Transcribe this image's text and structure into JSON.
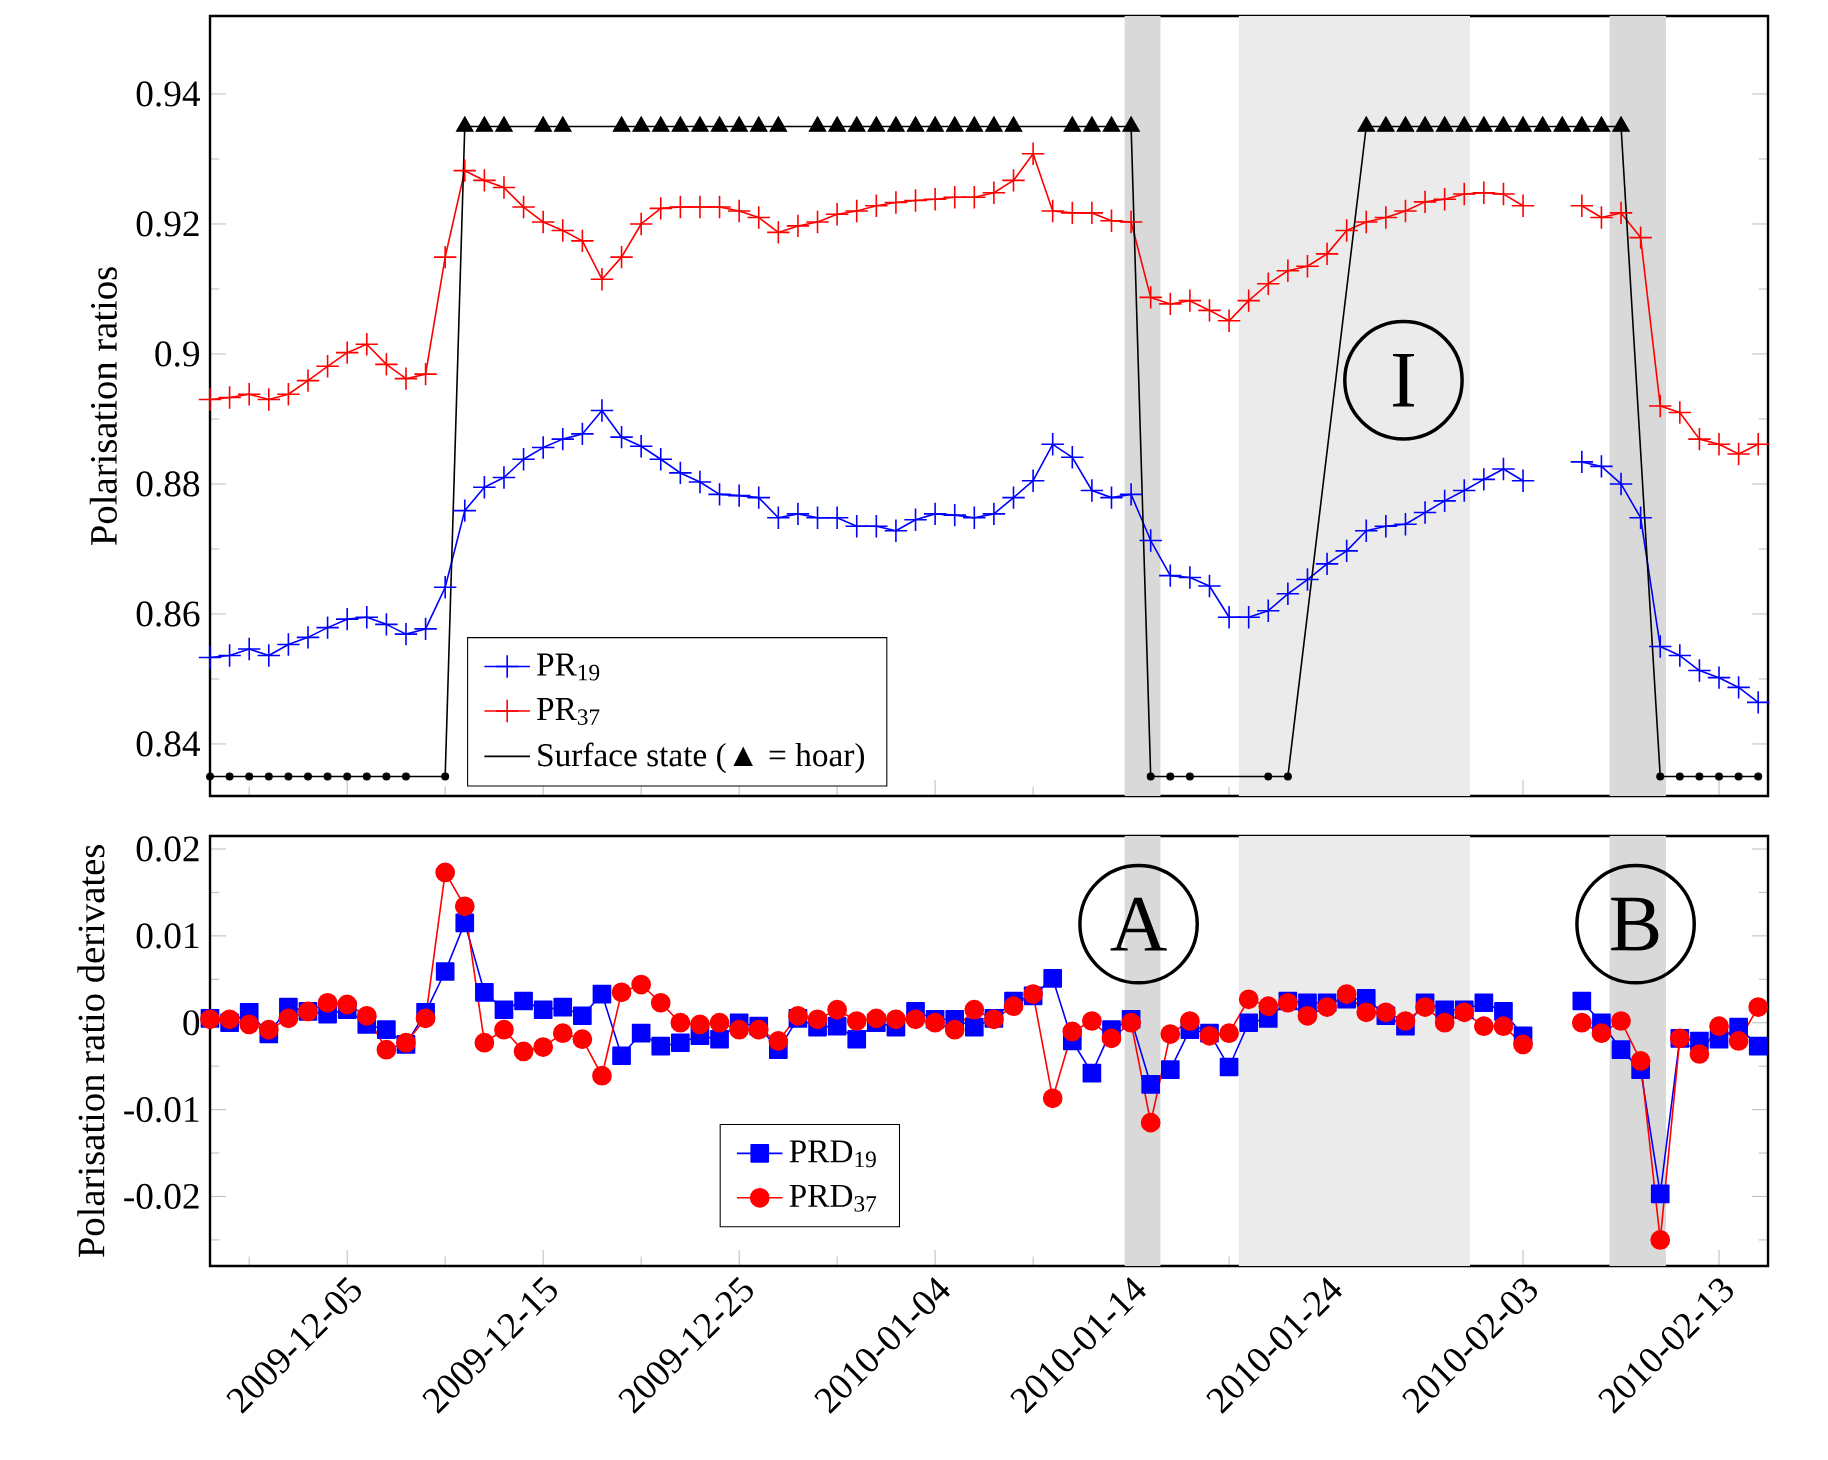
{
  "chart_data": [
    {
      "type": "line",
      "ylabel": "Polarisation ratios",
      "x": [
        "2009-11-28",
        "2009-11-29",
        "2009-11-30",
        "2009-12-01",
        "2009-12-02",
        "2009-12-03",
        "2009-12-04",
        "2009-12-05",
        "2009-12-06",
        "2009-12-07",
        "2009-12-08",
        "2009-12-09",
        "2009-12-10",
        "2009-12-11",
        "2009-12-12",
        "2009-12-13",
        "2009-12-14",
        "2009-12-15",
        "2009-12-16",
        "2009-12-17",
        "2009-12-18",
        "2009-12-19",
        "2009-12-20",
        "2009-12-21",
        "2009-12-22",
        "2009-12-23",
        "2009-12-24",
        "2009-12-25",
        "2009-12-26",
        "2009-12-27",
        "2009-12-28",
        "2009-12-29",
        "2009-12-30",
        "2009-12-31",
        "2010-01-01",
        "2010-01-02",
        "2010-01-03",
        "2010-01-04",
        "2010-01-05",
        "2010-01-06",
        "2010-01-07",
        "2010-01-08",
        "2010-01-09",
        "2010-01-10",
        "2010-01-11",
        "2010-01-12",
        "2010-01-13",
        "2010-01-14",
        "2010-01-15",
        "2010-01-16",
        "2010-01-17",
        "2010-01-18",
        "2010-01-19",
        "2010-01-20",
        "2010-01-21",
        "2010-01-22",
        "2010-01-23",
        "2010-01-24",
        "2010-01-25",
        "2010-01-26",
        "2010-01-27",
        "2010-01-28",
        "2010-01-29",
        "2010-01-30",
        "2010-01-31",
        "2010-02-01",
        "2010-02-02",
        "2010-02-03",
        "2010-02-04",
        "2010-02-05",
        "2010-02-06",
        "2010-02-07",
        "2010-02-08",
        "2010-02-09",
        "2010-02-10",
        "2010-02-11",
        "2010-02-12",
        "2010-02-13",
        "2010-02-14",
        "2010-02-15"
      ],
      "series": [
        {
          "name": "PR$_{19}$",
          "color": "#0000ff",
          "marker": "cross",
          "values": [
            0.8533,
            0.8536,
            0.8546,
            0.8536,
            0.8553,
            0.8564,
            0.8579,
            0.8592,
            0.8595,
            0.8584,
            0.8569,
            0.8577,
            0.8641,
            0.8759,
            0.8795,
            0.881,
            0.8838,
            0.8856,
            0.8869,
            0.8877,
            0.8913,
            0.8872,
            0.8858,
            0.8838,
            0.8817,
            0.8803,
            0.8784,
            0.8782,
            0.8779,
            0.8748,
            0.8754,
            0.8748,
            0.8748,
            0.8735,
            0.8735,
            0.8728,
            0.8745,
            0.8754,
            0.8752,
            0.8748,
            0.8754,
            0.8779,
            0.8805,
            0.8861,
            0.8841,
            0.879,
            0.8779,
            0.8784,
            0.8713,
            0.8659,
            0.8656,
            0.8643,
            0.8595,
            0.8595,
            0.8605,
            0.8631,
            0.8653,
            0.8677,
            0.8697,
            0.8728,
            0.8735,
            0.8738,
            0.8756,
            0.8774,
            0.879,
            0.8807,
            0.8823,
            0.8805,
            null,
            null,
            0.8834,
            0.8827,
            0.88,
            0.8748,
            0.855,
            0.8536,
            0.8513,
            0.8502,
            0.8487,
            0.8464
          ]
        },
        {
          "name": "PR$_{37}$",
          "color": "#ff0000",
          "marker": "cross",
          "values": [
            0.893,
            0.8933,
            0.8938,
            0.893,
            0.8938,
            0.8959,
            0.8981,
            0.9002,
            0.9015,
            0.8984,
            0.8962,
            0.8969,
            0.9149,
            0.9282,
            0.9267,
            0.9256,
            0.9226,
            0.9203,
            0.919,
            0.9174,
            0.9115,
            0.9149,
            0.92,
            0.9224,
            0.9226,
            0.9226,
            0.9226,
            0.922,
            0.921,
            0.9187,
            0.9197,
            0.9203,
            0.9215,
            0.922,
            0.9228,
            0.9233,
            0.9236,
            0.9238,
            0.9241,
            0.9241,
            0.9248,
            0.9267,
            0.9308,
            0.922,
            0.9217,
            0.9217,
            0.9205,
            0.9203,
            0.9087,
            0.9077,
            0.9082,
            0.9067,
            0.9051,
            0.9082,
            0.9108,
            0.9128,
            0.9135,
            0.9154,
            0.919,
            0.9203,
            0.921,
            0.922,
            0.9234,
            0.9238,
            0.9246,
            0.9248,
            0.9246,
            0.9228,
            null,
            null,
            0.9228,
            0.921,
            0.9217,
            0.9179,
            0.892,
            0.891,
            0.8869,
            0.8861,
            0.8846,
            0.8861
          ]
        },
        {
          "name": "Surface state (▲ = hoar)",
          "color": "#000000",
          "marker": "none",
          "x": [
            "2009-11-28",
            "2009-11-29",
            "2009-11-30",
            "2009-12-01",
            "2009-12-02",
            "2009-12-03",
            "2009-12-04",
            "2009-12-05",
            "2009-12-06",
            "2009-12-07",
            "2009-12-08",
            "2009-12-10",
            "2009-12-11",
            "2009-12-12",
            "2009-12-13",
            "2009-12-15",
            "2009-12-16",
            "2009-12-19",
            "2009-12-20",
            "2009-12-21",
            "2009-12-22",
            "2009-12-23",
            "2009-12-24",
            "2009-12-25",
            "2009-12-26",
            "2009-12-27",
            "2009-12-29",
            "2009-12-30",
            "2009-12-31",
            "2010-01-01",
            "2010-01-02",
            "2010-01-03",
            "2010-01-04",
            "2010-01-05",
            "2010-01-06",
            "2010-01-07",
            "2010-01-08",
            "2010-01-11",
            "2010-01-12",
            "2010-01-13",
            "2010-01-14",
            "2010-01-15",
            "2010-01-16",
            "2010-01-17",
            "2010-01-21",
            "2010-01-22",
            "2010-01-26",
            "2010-01-27",
            "2010-01-28",
            "2010-01-29",
            "2010-01-30",
            "2010-01-31",
            "2010-02-01",
            "2010-02-02",
            "2010-02-03",
            "2010-02-04",
            "2010-02-05",
            "2010-02-06",
            "2010-02-07",
            "2010-02-08",
            "2010-02-10",
            "2010-02-11",
            "2010-02-12",
            "2010-02-13",
            "2010-02-14",
            "2010-02-15"
          ],
          "values": [
            0.835,
            0.835,
            0.835,
            0.835,
            0.835,
            0.835,
            0.835,
            0.835,
            0.835,
            0.835,
            0.835,
            0.835,
            0.935,
            0.935,
            0.935,
            0.935,
            0.935,
            0.935,
            0.935,
            0.935,
            0.935,
            0.935,
            0.935,
            0.935,
            0.935,
            0.935,
            0.935,
            0.935,
            0.935,
            0.935,
            0.935,
            0.935,
            0.935,
            0.935,
            0.935,
            0.935,
            0.935,
            0.935,
            0.935,
            0.935,
            0.935,
            0.835,
            0.835,
            0.835,
            0.835,
            0.835,
            0.935,
            0.935,
            0.935,
            0.935,
            0.935,
            0.935,
            0.935,
            0.935,
            0.935,
            0.935,
            0.935,
            0.935,
            0.935,
            0.935,
            0.835,
            0.835,
            0.835,
            0.835,
            0.835,
            0.835
          ]
        },
        {
          "type": "scatter",
          "color": "#000000",
          "marker": "triangle",
          "x": [
            "2009-12-11",
            "2009-12-12",
            "2009-12-13",
            "2009-12-15",
            "2009-12-16",
            "2009-12-19",
            "2009-12-20",
            "2009-12-21",
            "2009-12-22",
            "2009-12-23",
            "2009-12-24",
            "2009-12-25",
            "2009-12-26",
            "2009-12-27",
            "2009-12-29",
            "2009-12-30",
            "2009-12-31",
            "2010-01-01",
            "2010-01-02",
            "2010-01-03",
            "2010-01-04",
            "2010-01-05",
            "2010-01-06",
            "2010-01-07",
            "2010-01-08",
            "2010-01-11",
            "2010-01-12",
            "2010-01-13",
            "2010-01-14",
            "2010-01-26",
            "2010-01-27",
            "2010-01-28",
            "2010-01-29",
            "2010-01-30",
            "2010-01-31",
            "2010-02-01",
            "2010-02-02",
            "2010-02-03",
            "2010-02-04",
            "2010-02-05",
            "2010-02-06",
            "2010-02-07",
            "2010-02-08"
          ],
          "values": [
            0.935,
            0.935,
            0.935,
            0.935,
            0.935,
            0.935,
            0.935,
            0.935,
            0.935,
            0.935,
            0.935,
            0.935,
            0.935,
            0.935,
            0.935,
            0.935,
            0.935,
            0.935,
            0.935,
            0.935,
            0.935,
            0.935,
            0.935,
            0.935,
            0.935,
            0.935,
            0.935,
            0.935,
            0.935,
            0.935,
            0.935,
            0.935,
            0.935,
            0.935,
            0.935,
            0.935,
            0.935,
            0.935,
            0.935,
            0.935,
            0.935,
            0.935,
            0.935
          ]
        },
        {
          "type": "scatter",
          "color": "#000000",
          "marker": "circle",
          "x": [
            "2009-11-28",
            "2009-11-29",
            "2009-11-30",
            "2009-12-01",
            "2009-12-02",
            "2009-12-03",
            "2009-12-04",
            "2009-12-05",
            "2009-12-06",
            "2009-12-07",
            "2009-12-08",
            "2009-12-10",
            "2010-01-15",
            "2010-01-16",
            "2010-01-17",
            "2010-01-21",
            "2010-01-22",
            "2010-02-10",
            "2010-02-11",
            "2010-02-12",
            "2010-02-13",
            "2010-02-14",
            "2010-02-15"
          ],
          "values": [
            0.835,
            0.835,
            0.835,
            0.835,
            0.835,
            0.835,
            0.835,
            0.835,
            0.835,
            0.835,
            0.835,
            0.835,
            0.835,
            0.835,
            0.835,
            0.835,
            0.835,
            0.835,
            0.835,
            0.835,
            0.835,
            0.835,
            0.835
          ]
        }
      ],
      "xlim": [
        "2009-11-28",
        "2010-02-15T12:00"
      ],
      "xticks": [
        {
          "value": "2009-11-30",
          "label": null
        },
        "2009-12-05",
        {
          "value": "2009-12-10",
          "label": null
        },
        "2009-12-15",
        {
          "value": "2009-12-20",
          "label": null
        },
        "2009-12-25",
        {
          "value": "2009-12-30",
          "label": null
        },
        "2010-01-04",
        {
          "value": "2010-01-09",
          "label": null
        },
        "2010-01-14",
        {
          "value": "2010-01-19",
          "label": null
        },
        "2010-01-24",
        {
          "value": "2010-01-29",
          "label": null
        },
        "2010-02-03",
        {
          "value": "2010-02-08",
          "label": null
        },
        "2010-02-13"
      ],
      "ylim": [
        0.832,
        0.952
      ],
      "yticks": [
        0.84,
        {
          "value": 0.85,
          "label": null
        },
        0.86,
        {
          "value": 0.87,
          "label": null
        },
        0.88,
        {
          "value": 0.89,
          "label": null
        },
        0.9,
        {
          "value": 0.91,
          "label": null
        },
        0.92,
        {
          "value": 0.93,
          "label": null
        },
        0.94
      ],
      "tick_labels": "y",
      "legend": "bottom left",
      "bands": [
        {
          "axis": "x",
          "from": "2010-01-13T16:00",
          "to": "2010-01-15T12:00",
          "color": "#d9d9d9"
        },
        {
          "axis": "x",
          "from": "2010-01-19T12:00",
          "to": "2010-01-31T07:00",
          "color": "#ebebeb"
        },
        {
          "axis": "x",
          "from": "2010-02-07T10:00",
          "to": "2010-02-10T07:00",
          "color": "#d9d9d9"
        }
      ],
      "annotations": [
        "I"
      ]
    },
    {
      "type": "line",
      "ylabel": "Polarisation ratio derivates",
      "x": [
        "2009-11-28",
        "2009-11-29",
        "2009-11-30",
        "2009-12-01",
        "2009-12-02",
        "2009-12-03",
        "2009-12-04",
        "2009-12-05",
        "2009-12-06",
        "2009-12-07",
        "2009-12-08",
        "2009-12-09",
        "2009-12-10",
        "2009-12-11",
        "2009-12-12",
        "2009-12-13",
        "2009-12-14",
        "2009-12-15",
        "2009-12-16",
        "2009-12-17",
        "2009-12-18",
        "2009-12-19",
        "2009-12-20",
        "2009-12-21",
        "2009-12-22",
        "2009-12-23",
        "2009-12-24",
        "2009-12-25",
        "2009-12-26",
        "2009-12-27",
        "2009-12-28",
        "2009-12-29",
        "2009-12-30",
        "2009-12-31",
        "2010-01-01",
        "2010-01-02",
        "2010-01-03",
        "2010-01-04",
        "2010-01-05",
        "2010-01-06",
        "2010-01-07",
        "2010-01-08",
        "2010-01-09",
        "2010-01-10",
        "2010-01-11",
        "2010-01-12",
        "2010-01-13",
        "2010-01-14",
        "2010-01-15",
        "2010-01-16",
        "2010-01-17",
        "2010-01-18",
        "2010-01-19",
        "2010-01-20",
        "2010-01-21",
        "2010-01-22",
        "2010-01-23",
        "2010-01-24",
        "2010-01-25",
        "2010-01-26",
        "2010-01-27",
        "2010-01-28",
        "2010-01-29",
        "2010-01-30",
        "2010-01-31",
        "2010-02-01",
        "2010-02-02",
        "2010-02-03",
        "2010-02-04",
        "2010-02-05",
        "2010-02-06",
        "2010-02-07",
        "2010-02-08",
        "2010-02-09",
        "2010-02-10",
        "2010-02-11",
        "2010-02-12",
        "2010-02-13",
        "2010-02-14",
        "2010-02-15"
      ],
      "series": [
        {
          "name": "PRD$_{19}$",
          "color": "#0000ff",
          "marker": "square",
          "values": [
            0.0005,
            0,
            0.0012,
            -0.0013,
            0.0018,
            0.0013,
            0.001,
            0.0015,
            -0.0002,
            -0.0008,
            -0.0025,
            0.0012,
            0.0059,
            0.0115,
            0.0035,
            0.0015,
            0.0025,
            0.0015,
            0.0018,
            0.0008,
            0.0033,
            -0.0038,
            -0.0012,
            -0.0027,
            -0.0023,
            -0.0015,
            -0.0019,
            0,
            -0.0004,
            -0.0031,
            0.0005,
            -0.0005,
            -0.0004,
            -0.0019,
            0,
            -0.0005,
            0.0013,
            0.0004,
            0.0004,
            -0.0005,
            0.0005,
            0.0025,
            0.0031,
            0.0051,
            -0.0021,
            -0.0058,
            -0.0008,
            0.0004,
            -0.0071,
            -0.0054,
            -0.0008,
            -0.0012,
            -0.0051,
            0,
            0.0005,
            0.0025,
            0.0023,
            0.0023,
            0.0027,
            0.0028,
            0.0008,
            -0.0004,
            0.0023,
            0.0015,
            0.0015,
            0.0023,
            0.0013,
            -0.0015,
            null,
            null,
            0.0025,
            0,
            -0.0031,
            -0.0054,
            -0.0197,
            -0.0018,
            -0.0021,
            -0.0019,
            -0.0005,
            -0.0027
          ]
        },
        {
          "name": "PRD$_{37}$",
          "color": "#ff0000",
          "marker": "circle",
          "values": [
            0.0004,
            0.0004,
            -0.0002,
            -0.0008,
            0.0005,
            0.0013,
            0.0023,
            0.0021,
            0.0008,
            -0.0031,
            -0.0023,
            0.0005,
            0.0173,
            0.0134,
            -0.0023,
            -0.0008,
            -0.0033,
            -0.0028,
            -0.0012,
            -0.0019,
            -0.0061,
            0.0035,
            0.0044,
            0.0023,
            0,
            -0.0002,
            0,
            -0.0008,
            -0.0008,
            -0.0021,
            0.0008,
            0.0004,
            0.0015,
            0.0002,
            0.0005,
            0.0004,
            0.0004,
            0,
            -0.0008,
            0.0015,
            0.0004,
            0.0019,
            0.0033,
            -0.0087,
            -0.001,
            0.0002,
            -0.0018,
            0,
            -0.0115,
            -0.0013,
            0.0002,
            -0.0015,
            -0.0012,
            0.0027,
            0.0019,
            0.0023,
            0.0008,
            0.0018,
            0.0033,
            0.0012,
            0.0012,
            0.0002,
            0.0018,
            0,
            0.0012,
            -0.0004,
            -0.0004,
            -0.0025,
            null,
            null,
            0,
            -0.0012,
            0.0002,
            -0.0044,
            -0.025,
            -0.0018,
            -0.0036,
            -0.0004,
            -0.0021,
            0.0018
          ]
        }
      ],
      "xlim": [
        "2009-11-28",
        "2010-02-15T12:00"
      ],
      "xticks": [
        {
          "value": "2009-11-30",
          "label": null
        },
        "2009-12-05",
        {
          "value": "2009-12-10",
          "label": null
        },
        "2009-12-15",
        {
          "value": "2009-12-20",
          "label": null
        },
        "2009-12-25",
        {
          "value": "2009-12-30",
          "label": null
        },
        "2010-01-04",
        {
          "value": "2010-01-09",
          "label": null
        },
        "2010-01-14",
        {
          "value": "2010-01-19",
          "label": null
        },
        "2010-01-24",
        {
          "value": "2010-01-29",
          "label": null
        },
        "2010-02-03",
        {
          "value": "2010-02-08",
          "label": null
        },
        "2010-02-13"
      ],
      "ylim": [
        -0.028,
        0.0215
      ],
      "yticks": [
        {
          "value": -0.025,
          "label": null
        },
        -0.02,
        {
          "value": -0.015,
          "label": null
        },
        -0.01,
        {
          "value": -0.005,
          "label": null
        },
        0,
        {
          "value": 0.005,
          "label": null
        },
        0.01,
        {
          "value": 0.015,
          "label": null
        },
        0.02
      ],
      "legend": "bottom",
      "bands": [
        {
          "axis": "x",
          "from": "2010-01-13T16:00",
          "to": "2010-01-15T12:00",
          "color": "#d9d9d9"
        },
        {
          "axis": "x",
          "from": "2010-01-19T12:00",
          "to": "2010-01-31T07:00",
          "color": "#ebebeb"
        },
        {
          "axis": "x",
          "from": "2010-02-07T10:00",
          "to": "2010-02-10T07:00",
          "color": "#d9d9d9"
        }
      ],
      "annotations": [
        "A",
        "B"
      ]
    }
  ]
}
